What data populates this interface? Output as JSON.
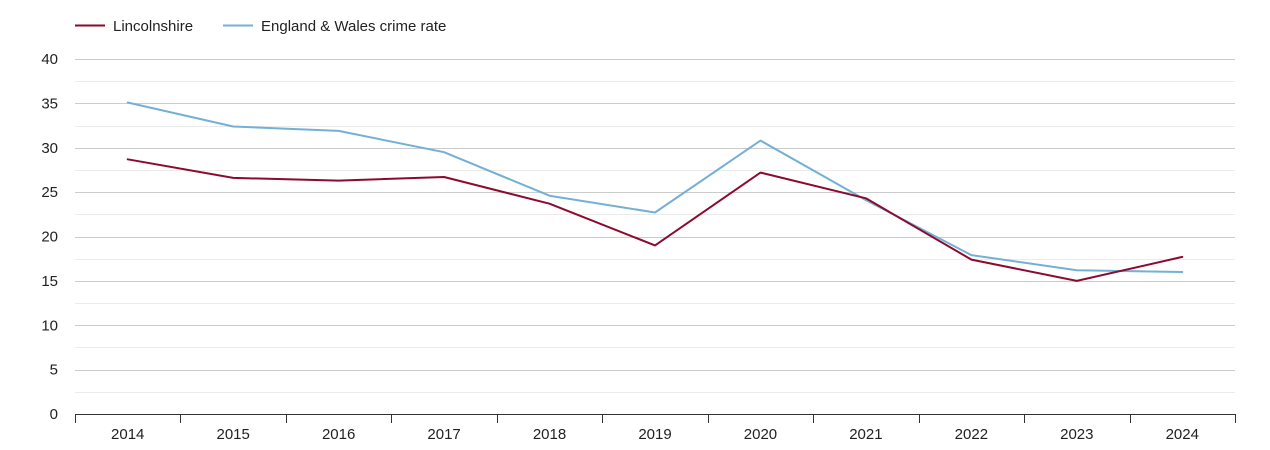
{
  "chart_data": {
    "type": "line",
    "categories": [
      "2014",
      "2015",
      "2016",
      "2017",
      "2018",
      "2019",
      "2020",
      "2021",
      "2022",
      "2023",
      "2024"
    ],
    "series": [
      {
        "name": "Lincolnshire",
        "color": "#8b0a2e",
        "values": [
          28.7,
          26.6,
          26.3,
          26.7,
          23.7,
          19.0,
          27.2,
          24.3,
          17.4,
          15.0,
          17.7
        ]
      },
      {
        "name": "England & Wales crime rate",
        "color": "#74b0d4",
        "values": [
          35.1,
          32.4,
          31.9,
          29.5,
          24.6,
          22.7,
          30.8,
          24.1,
          17.9,
          16.2,
          16.0
        ]
      }
    ],
    "yticks": [
      0,
      5,
      10,
      15,
      20,
      25,
      30,
      35,
      40
    ],
    "ylim": [
      0,
      40
    ],
    "grid": true,
    "legend_position": "top-left"
  }
}
